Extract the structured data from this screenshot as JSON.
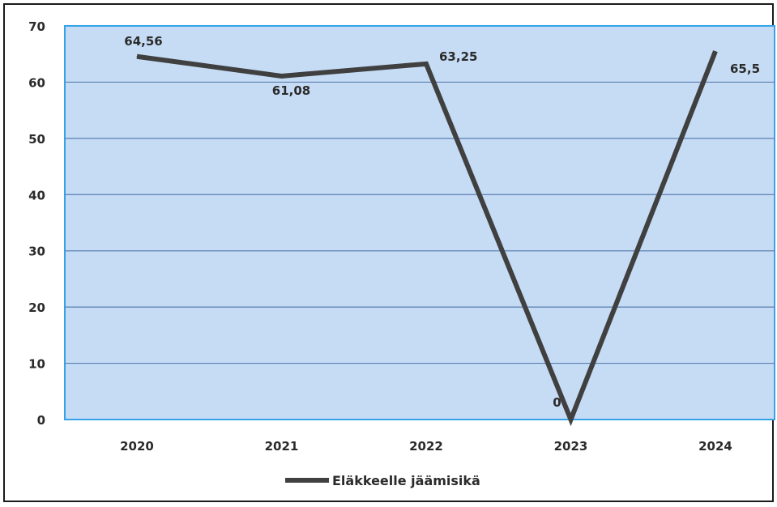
{
  "chart_data": {
    "type": "line",
    "categories": [
      "2020",
      "2021",
      "2022",
      "2023",
      "2024"
    ],
    "series": [
      {
        "name": "Eläkkeelle jäämisikä",
        "values": [
          64.56,
          61.08,
          63.25,
          0,
          65.5
        ],
        "data_labels": [
          "64,56",
          "61,08",
          "63,25",
          "0",
          "65,5"
        ],
        "color": "#404040"
      }
    ],
    "ylim": [
      0,
      70
    ],
    "yticks": [
      0,
      10,
      20,
      30,
      40,
      50,
      60,
      70
    ],
    "grid": true,
    "legend_position": "bottom",
    "plot_background": "#c6dcf5",
    "plot_border_color": "#36a3e8",
    "gridline_color": "#5a7fb0"
  }
}
